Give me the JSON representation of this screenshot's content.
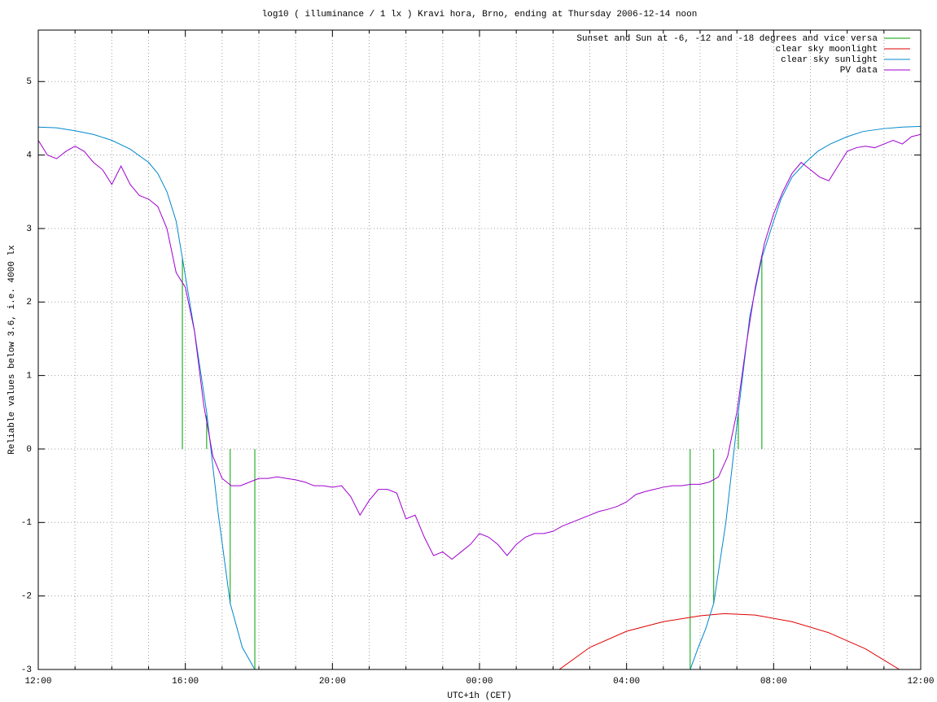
{
  "chart_data": {
    "type": "line",
    "title": "log10 ( illuminance / 1 lx ) Kravi hora, Brno, ending at Thursday 2006-12-14 noon",
    "xlabel": "UTC+1h (CET)",
    "ylabel": "Reliable values below 3.6, i.e. 4000 lx",
    "xlim": [
      0,
      24
    ],
    "ylim": [
      -3,
      5.7
    ],
    "xticks": [
      {
        "value": 0,
        "label": "12:00"
      },
      {
        "value": 4,
        "label": "16:00"
      },
      {
        "value": 8,
        "label": "20:00"
      },
      {
        "value": 12,
        "label": "00:00"
      },
      {
        "value": 16,
        "label": "04:00"
      },
      {
        "value": 20,
        "label": "08:00"
      },
      {
        "value": 24,
        "label": "12:00"
      }
    ],
    "xminorticks": [
      1,
      2,
      3,
      5,
      6,
      7,
      9,
      10,
      11,
      13,
      14,
      15,
      17,
      18,
      19,
      21,
      22,
      23
    ],
    "yticks": [
      -3,
      -2,
      -1,
      0,
      1,
      2,
      3,
      4,
      5
    ],
    "grid": true,
    "legend": "top-right",
    "series": [
      {
        "name": "Sunset and Sun at -6, -12 and -18 degrees and vice versa",
        "color": "#00a000",
        "style": "impulses",
        "x": [
          3.92,
          4.58,
          5.22,
          5.89,
          17.73,
          18.37,
          19.04,
          19.68
        ],
        "values": [
          2.6,
          0.46,
          -2.1,
          -3,
          -3,
          -2.1,
          0.5,
          2.6
        ]
      },
      {
        "name": "clear sky moonlight",
        "color": "#e00000",
        "style": "lines",
        "x": [
          14.17,
          15,
          16,
          17,
          18,
          18.66,
          19.5,
          20.5,
          21.5,
          22.5,
          23.42
        ],
        "values": [
          -3,
          -2.7,
          -2.48,
          -2.35,
          -2.27,
          -2.24,
          -2.26,
          -2.35,
          -2.5,
          -2.72,
          -3
        ]
      },
      {
        "name": "clear sky sunlight",
        "color": "#0088cc",
        "style": "lines",
        "x": [
          0,
          0.5,
          1,
          1.5,
          2,
          2.5,
          3,
          3.25,
          3.5,
          3.75,
          3.92,
          4.25,
          4.58,
          4.9,
          5.22,
          5.55,
          5.89,
          12,
          17.73,
          17.95,
          18.15,
          18.37,
          18.7,
          19.04,
          19.35,
          19.68,
          20,
          20.2,
          20.5,
          20.87,
          21.2,
          21.54,
          22,
          22.43,
          23,
          23.5,
          24
        ],
        "values": [
          4.38,
          4.37,
          4.33,
          4.28,
          4.2,
          4.08,
          3.9,
          3.75,
          3.5,
          3.1,
          2.6,
          1.6,
          0.5,
          -0.9,
          -2.1,
          -2.7,
          -3,
          null,
          -3,
          -2.7,
          -2.45,
          -2.1,
          -1.0,
          0.5,
          1.8,
          2.6,
          3.1,
          3.4,
          3.7,
          3.9,
          4.05,
          4.15,
          4.25,
          4.32,
          4.36,
          4.38,
          4.39
        ]
      },
      {
        "name": "PV data",
        "color": "#a000d0",
        "style": "lines",
        "x": [
          0,
          0.25,
          0.5,
          0.75,
          1,
          1.25,
          1.5,
          1.75,
          2,
          2.25,
          2.5,
          2.75,
          3,
          3.25,
          3.5,
          3.75,
          4,
          4.25,
          4.5,
          4.75,
          5,
          5.25,
          5.5,
          5.75,
          6,
          6.25,
          6.5,
          6.75,
          7,
          7.25,
          7.5,
          7.75,
          8,
          8.25,
          8.5,
          8.75,
          9,
          9.25,
          9.5,
          9.75,
          10,
          10.25,
          10.5,
          10.75,
          11,
          11.25,
          11.5,
          11.75,
          12,
          12.25,
          12.5,
          12.75,
          13,
          13.25,
          13.5,
          13.75,
          14,
          14.25,
          14.5,
          14.75,
          15,
          15.25,
          15.5,
          15.75,
          16,
          16.25,
          16.5,
          16.75,
          17,
          17.25,
          17.5,
          17.75,
          18,
          18.25,
          18.5,
          18.75,
          19,
          19.25,
          19.5,
          19.75,
          20,
          20.25,
          20.5,
          20.75,
          21,
          21.25,
          21.5,
          21.75,
          22,
          22.25,
          22.5,
          22.75,
          23,
          23.25,
          23.5,
          23.75,
          24
        ],
        "values": [
          4.2,
          4.0,
          3.95,
          4.05,
          4.12,
          4.05,
          3.9,
          3.8,
          3.6,
          3.85,
          3.6,
          3.45,
          3.4,
          3.3,
          3.0,
          2.4,
          2.2,
          1.6,
          0.6,
          -0.1,
          -0.4,
          -0.5,
          -0.5,
          -0.45,
          -0.4,
          -0.4,
          -0.38,
          -0.4,
          -0.42,
          -0.45,
          -0.5,
          -0.5,
          -0.52,
          -0.5,
          -0.65,
          -0.9,
          -0.7,
          -0.55,
          -0.55,
          -0.6,
          -0.95,
          -0.9,
          -1.2,
          -1.45,
          -1.4,
          -1.5,
          -1.4,
          -1.3,
          -1.15,
          -1.2,
          -1.3,
          -1.45,
          -1.3,
          -1.2,
          -1.15,
          -1.15,
          -1.12,
          -1.05,
          -1.0,
          -0.95,
          -0.9,
          -0.85,
          -0.82,
          -0.78,
          -0.72,
          -0.62,
          -0.58,
          -0.55,
          -0.52,
          -0.5,
          -0.5,
          -0.48,
          -0.48,
          -0.45,
          -0.38,
          -0.1,
          0.5,
          1.4,
          2.2,
          2.8,
          3.2,
          3.5,
          3.75,
          3.9,
          3.8,
          3.7,
          3.65,
          3.85,
          4.05,
          4.1,
          4.12,
          4.1,
          4.15,
          4.2,
          4.15,
          4.25,
          4.28
        ]
      }
    ]
  }
}
